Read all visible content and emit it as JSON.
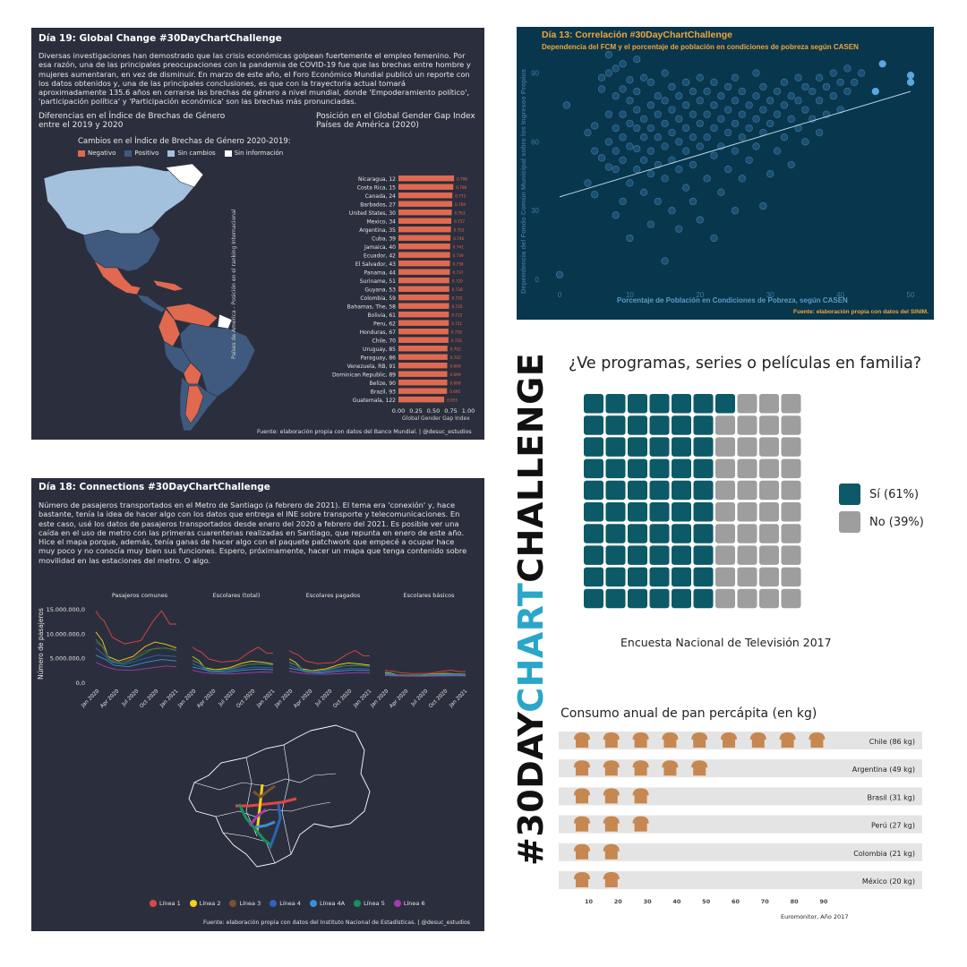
{
  "banner": {
    "text_a": "#30DAY",
    "text_b": "CHART",
    "text_c": "CHALLENGE",
    "color_dark": "#111111",
    "color_accent": "#2aa6c9"
  },
  "p19": {
    "title": "Día 19: Global Change #30DayChartChallenge",
    "description": "Diversas investigaciones han demostrado que las crisis económicas golpean fuertemente el empleo femenino. Por esa razón, una de las principales preocupaciones con la pandemia de COVID-19 fue que las brechas entre hombre y mujeres aumentaran, en vez de disminuir. En marzo de este año, el Foro Económico Mundial publicó un reporte con los datos obtenidos y, una de las principales conclusiones, es que con la trayectoria actual tomará aproximadamente 135.6 años en cerrarse las brechas de género a nivel mundial, donde 'Empoderamiento político', 'participación política' y 'Participación económica' son las brechas más pronunciadas.",
    "map_title_1": "Diferencias en el Índice de Brechas de Género",
    "map_title_2": "entre el 2019 y 2020",
    "bars_title_1": "Posición en el Global Gender Gap Index",
    "bars_title_2": "Países de América (2020)",
    "legend_title": "Cambios en el Índice de Brechas de Género 2020-2019:",
    "legend": [
      {
        "label": "Negativo",
        "color": "#e0694f"
      },
      {
        "label": "Positivo",
        "color": "#3f5a7e"
      },
      {
        "label": "Sin cambios",
        "color": "#a3c1dd"
      },
      {
        "label": "Sin información",
        "color": "#ffffff"
      }
    ],
    "source": "Fuente: elaboración propia con datos del Banco Mundial. | @desuc_estudios"
  },
  "p13": {
    "title": "Día 13: Correlación #30DayChartChallenge",
    "subtitle": "Dependencia del FCM y el porcentaje de población en condiciones de pobreza según CASEN",
    "source": "Fuente: elaboración propia con datos del SINIM."
  },
  "p18": {
    "title": "Día 18: Connections #30DayChartChallenge",
    "description": "Número de pasajeros transportados en el Metro de Santiago (a febrero de 2021). El tema era 'conexión' y, hace bastante, tenía la idea de hacer algo con los datos que entrega el INE sobre transporte y telecomunicaciones. En este caso, usé los datos de pasajeros transportados desde enero del 2020 a febrero del 2021. Es posible ver una caída en el uso de metro con las primeras cuarentenas realizadas en Santiago, que repunta en enero de este año. Hice el mapa porque, además, tenía ganas de hacer algo con el paquete patchwork que empecé a ocupar hace muy poco y no conocía muy bien sus funciones. Espero, próximamente, hacer un mapa que tenga contenido sobre movilidad en las estaciones del metro. O algo.",
    "ylabel": "Número de pasajeros",
    "yticks": [
      "15.000.000,0",
      "10.000.000,0",
      "5.000.000,0",
      "0,0"
    ],
    "xticks": [
      "Jan 2020",
      "Apr 2020",
      "Jul 2020",
      "Oct 2020",
      "Jan 2021"
    ],
    "facets": [
      "Pasajeros comunes",
      "Escolares (total)",
      "Escolares pagados",
      "Escolares básicos"
    ],
    "lines": [
      {
        "label": "Línea 1",
        "color": "#e04646"
      },
      {
        "label": "Línea 2",
        "color": "#f2d21f"
      },
      {
        "label": "Línea 3",
        "color": "#7a5230"
      },
      {
        "label": "Línea 4",
        "color": "#2f62b8"
      },
      {
        "label": "Línea 4A",
        "color": "#3b8fd9"
      },
      {
        "label": "Línea 5",
        "color": "#17905e"
      },
      {
        "label": "Línea 6",
        "color": "#a23bb0"
      }
    ],
    "source": "Fuente: elaboración propia con datos del Instituto Nacional de Estadísticas. | @desuc_estudios"
  },
  "waffle": {
    "title": "¿Ve programas, series o películas en familia?",
    "legend": [
      {
        "label": "Sí (61%)",
        "color": "#0c5a67"
      },
      {
        "label": "No (39%)",
        "color": "#9e9e9e"
      }
    ],
    "caption": "Encuesta Nacional de Televisión 2017"
  },
  "chart_data": [
    {
      "type": "bar",
      "orientation": "horizontal",
      "title": "Posición en el Global Gender Gap Index Países de América (2020)",
      "xlabel": "Global Gender Gap Index",
      "ylabel": "Países de América - Posición en el ranking Internacional",
      "xlim": [
        0,
        1
      ],
      "xticks": [
        "0.00",
        "0.25",
        "0.50",
        "0.75",
        "1.00"
      ],
      "categories": [
        "Nicaragua, 12",
        "Costa Rica, 15",
        "Canada, 24",
        "Barbados, 27",
        "United States, 30",
        "Mexico, 34",
        "Argentina, 35",
        "Cuba, 39",
        "Jamaica, 40",
        "Ecuador, 42",
        "El Salvador, 43",
        "Panama, 44",
        "Suriname, 51",
        "Guyana, 53",
        "Colombia, 59",
        "Bahamas, The, 58",
        "Bolivia, 61",
        "Peru, 62",
        "Honduras, 67",
        "Chile, 70",
        "Uruguay, 85",
        "Paraguay, 86",
        "Venezuela, RB, 91",
        "Dominican Republic, 89",
        "Belize, 90",
        "Brazil, 93",
        "Guatemala, 122"
      ],
      "values": [
        0.796,
        0.786,
        0.772,
        0.769,
        0.763,
        0.757,
        0.752,
        0.746,
        0.741,
        0.739,
        0.738,
        0.737,
        0.729,
        0.728,
        0.725,
        0.725,
        0.722,
        0.721,
        0.716,
        0.716,
        0.702,
        0.702,
        0.699,
        0.699,
        0.699,
        0.695,
        0.655
      ],
      "labels": [
        "0.796",
        "0.786",
        "0.772",
        "0.769",
        "0.763",
        "0.757",
        "0.752",
        "0.746",
        "0.741",
        "0.739",
        "0.738",
        "0.737",
        "0.729",
        "0.728",
        "0.725",
        "0.725",
        "0.722",
        "0.721",
        "0.716",
        "0.716",
        "0.702",
        "0.702",
        "0.699",
        "0.699",
        "0.699",
        "0.695",
        "0.655"
      ],
      "color": "#e0694f"
    },
    {
      "type": "scatter",
      "title": "Día 13: Correlación #30DayChartChallenge",
      "xlabel": "Porcentaje de Población en Condiciones de Pobreza, según CASEN",
      "ylabel": "Dependencia del Fondo Común Municipal sobre los Ingresos Propios",
      "xlim": [
        0,
        50
      ],
      "ylim": [
        0,
        100
      ],
      "xticks": [
        0,
        10,
        20,
        30,
        40,
        50
      ],
      "yticks": [
        0,
        30,
        60,
        90
      ],
      "trend": [
        [
          0,
          36
        ],
        [
          50,
          82
        ]
      ],
      "points": [
        [
          0,
          2
        ],
        [
          1,
          76
        ],
        [
          4,
          42
        ],
        [
          4,
          64
        ],
        [
          5,
          37
        ],
        [
          5,
          56
        ],
        [
          5,
          67
        ],
        [
          6,
          53
        ],
        [
          6,
          83
        ],
        [
          6,
          88
        ],
        [
          7,
          49
        ],
        [
          7,
          60
        ],
        [
          7,
          72
        ],
        [
          7,
          90
        ],
        [
          7,
          98
        ],
        [
          8,
          28
        ],
        [
          8,
          48
        ],
        [
          8,
          56
        ],
        [
          8,
          66
        ],
        [
          8,
          80
        ],
        [
          8,
          92
        ],
        [
          9,
          34
        ],
        [
          9,
          52
        ],
        [
          9,
          62
        ],
        [
          9,
          72
        ],
        [
          9,
          83
        ],
        [
          9,
          94
        ],
        [
          10,
          18
        ],
        [
          10,
          42
        ],
        [
          10,
          58
        ],
        [
          10,
          68
        ],
        [
          10,
          78
        ],
        [
          10,
          87
        ],
        [
          11,
          48
        ],
        [
          11,
          57
        ],
        [
          11,
          66
        ],
        [
          11,
          74
        ],
        [
          11,
          82
        ],
        [
          11,
          96
        ],
        [
          12,
          38
        ],
        [
          12,
          52
        ],
        [
          12,
          62
        ],
        [
          12,
          70
        ],
        [
          12,
          88
        ],
        [
          13,
          24
        ],
        [
          13,
          46
        ],
        [
          13,
          56
        ],
        [
          13,
          66
        ],
        [
          13,
          76
        ],
        [
          13,
          86
        ],
        [
          14,
          34
        ],
        [
          14,
          50
        ],
        [
          14,
          62
        ],
        [
          14,
          72
        ],
        [
          14,
          80
        ],
        [
          15,
          8
        ],
        [
          15,
          44
        ],
        [
          15,
          58
        ],
        [
          15,
          68
        ],
        [
          15,
          78
        ],
        [
          15,
          90
        ],
        [
          16,
          30
        ],
        [
          16,
          52
        ],
        [
          16,
          64
        ],
        [
          16,
          74
        ],
        [
          16,
          84
        ],
        [
          17,
          22
        ],
        [
          17,
          48
        ],
        [
          17,
          60
        ],
        [
          17,
          70
        ],
        [
          17,
          80
        ],
        [
          18,
          40
        ],
        [
          18,
          56
        ],
        [
          18,
          66
        ],
        [
          18,
          76
        ],
        [
          18,
          86
        ],
        [
          19,
          34
        ],
        [
          19,
          50
        ],
        [
          19,
          62
        ],
        [
          19,
          72
        ],
        [
          19,
          82
        ],
        [
          20,
          26
        ],
        [
          20,
          58
        ],
        [
          20,
          68
        ],
        [
          20,
          78
        ],
        [
          20,
          88
        ],
        [
          21,
          44
        ],
        [
          21,
          62
        ],
        [
          21,
          72
        ],
        [
          21,
          82
        ],
        [
          22,
          18
        ],
        [
          22,
          54
        ],
        [
          22,
          66
        ],
        [
          22,
          76
        ],
        [
          22,
          86
        ],
        [
          23,
          38
        ],
        [
          23,
          58
        ],
        [
          23,
          70
        ],
        [
          23,
          80
        ],
        [
          24,
          48
        ],
        [
          24,
          64
        ],
        [
          24,
          74
        ],
        [
          24,
          84
        ],
        [
          25,
          30
        ],
        [
          25,
          56
        ],
        [
          25,
          68
        ],
        [
          25,
          78
        ],
        [
          25,
          88
        ],
        [
          26,
          44
        ],
        [
          26,
          62
        ],
        [
          26,
          72
        ],
        [
          26,
          82
        ],
        [
          27,
          52
        ],
        [
          27,
          66
        ],
        [
          27,
          76
        ],
        [
          28,
          58
        ],
        [
          28,
          70
        ],
        [
          28,
          80
        ],
        [
          28,
          90
        ],
        [
          29,
          32
        ],
        [
          29,
          64
        ],
        [
          29,
          74
        ],
        [
          29,
          84
        ],
        [
          30,
          46
        ],
        [
          30,
          68
        ],
        [
          30,
          78
        ],
        [
          31,
          56
        ],
        [
          31,
          72
        ],
        [
          31,
          82
        ],
        [
          32,
          62
        ],
        [
          32,
          76
        ],
        [
          32,
          86
        ],
        [
          33,
          50
        ],
        [
          33,
          70
        ],
        [
          33,
          80
        ],
        [
          34,
          66
        ],
        [
          34,
          78
        ],
        [
          34,
          88
        ],
        [
          35,
          60
        ],
        [
          35,
          74
        ],
        [
          35,
          84
        ],
        [
          36,
          70
        ],
        [
          36,
          82
        ],
        [
          37,
          64
        ],
        [
          37,
          78
        ],
        [
          37,
          88
        ],
        [
          38,
          72
        ],
        [
          38,
          84
        ],
        [
          39,
          80
        ],
        [
          39,
          90
        ],
        [
          40,
          74
        ],
        [
          40,
          86
        ],
        [
          41,
          82
        ],
        [
          41,
          92
        ],
        [
          42,
          86
        ],
        [
          43,
          90
        ],
        [
          45,
          82
        ],
        [
          46,
          94
        ],
        [
          50,
          86
        ],
        [
          50,
          89
        ]
      ]
    },
    {
      "type": "bar",
      "subtype": "pictogram",
      "title": "Consumo anual de pan percápita (en kg)",
      "categories": [
        "Chile (86 kg)",
        "Argentina (49 kg)",
        "Brasil (31 kg)",
        "Perú (27 kg)",
        "Colombia (21 kg)",
        "México (20 kg)"
      ],
      "values": [
        86,
        49,
        31,
        27,
        21,
        20
      ],
      "icons_per_row": [
        9,
        5,
        3,
        3,
        2,
        2
      ],
      "icon": "bread-icon",
      "icon_color": "#c68850",
      "xticks": [
        10,
        20,
        30,
        40,
        50,
        60,
        70,
        80,
        90
      ],
      "source": "Euromonitor, Año 2017"
    },
    {
      "type": "waffle",
      "title": "¿Ve programas, series o películas en familia?",
      "categories": [
        "Sí (61%)",
        "No (39%)"
      ],
      "values": [
        61,
        39
      ],
      "grid": [
        10,
        10
      ]
    }
  ]
}
